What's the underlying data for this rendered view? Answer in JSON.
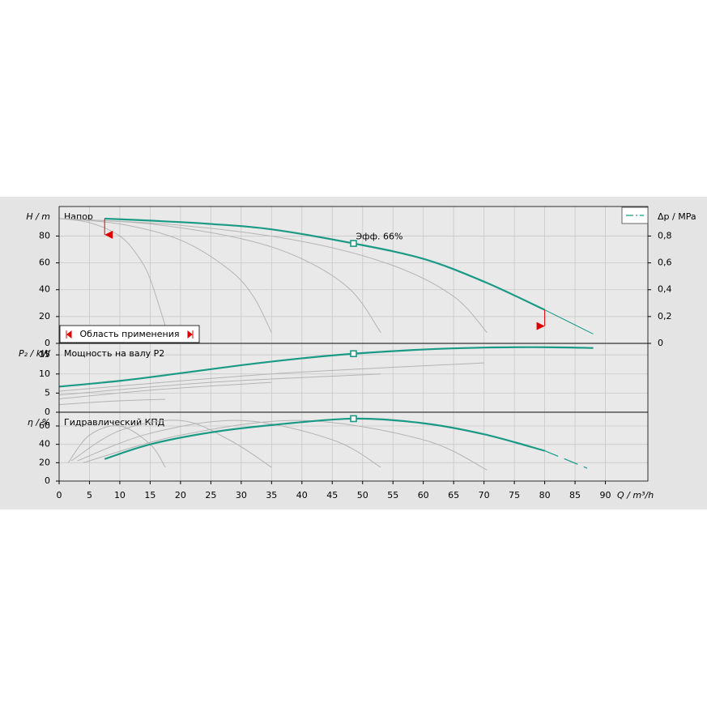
{
  "chart_data": [
    {
      "type": "line",
      "title": "Напор",
      "ylabel": "H / m",
      "y2label": "Δp / MPa",
      "xlim": [
        0,
        97
      ],
      "ylim": [
        0,
        102
      ],
      "yticks": [
        0,
        20,
        40,
        60,
        80
      ],
      "y2lim": [
        0,
        1.02
      ],
      "y2ticks": [
        0,
        {
          "value": 0.2,
          "label": "0,2"
        },
        {
          "value": 0.4,
          "label": "0,4"
        },
        {
          "value": 0.6,
          "label": "0,6"
        },
        {
          "value": 0.8,
          "label": "0,8"
        }
      ],
      "grid": true,
      "range": [
        7.5,
        80
      ],
      "range_label": "Область применения",
      "annotation": "Эфф.  66%",
      "duty_point": {
        "x": 48.5,
        "y": 74.5
      },
      "series": [
        {
          "color": "#b4b4b4",
          "width": 1,
          "x": [
            0,
            5,
            10,
            13,
            15,
            17.5
          ],
          "values": [
            93,
            90,
            80,
            65,
            48,
            13
          ]
        },
        {
          "color": "#b4b4b4",
          "width": 1,
          "x": [
            0,
            10,
            20,
            28,
            32,
            35
          ],
          "values": [
            93,
            89,
            77,
            55,
            35,
            8
          ]
        },
        {
          "color": "#b4b4b4",
          "width": 1,
          "x": [
            0,
            15,
            30,
            40,
            48,
            53
          ],
          "values": [
            93,
            89,
            78,
            63,
            40,
            8
          ]
        },
        {
          "color": "#b4b4b4",
          "width": 1,
          "x": [
            0,
            20,
            40,
            55,
            65,
            70.5
          ],
          "values": [
            93,
            88,
            76,
            58,
            35,
            8
          ]
        },
        {
          "color": "#1a9a84",
          "width": 2.2,
          "x": [
            7.5,
            15,
            25,
            35,
            48.5,
            60,
            70,
            80
          ],
          "values": [
            93,
            91.5,
            89,
            85,
            74.5,
            63,
            46,
            25
          ]
        },
        {
          "color": "#1a9a84",
          "width": 1,
          "x": [
            80,
            88
          ],
          "values": [
            25,
            7
          ]
        }
      ]
    },
    {
      "type": "line",
      "title": "Мощность на валу P2",
      "ylabel": "P₂ / kW",
      "xlim": [
        0,
        97
      ],
      "ylim": [
        0,
        18
      ],
      "yticks": [
        0,
        5,
        10,
        15
      ],
      "grid": true,
      "duty_point": {
        "x": 48.5,
        "y": 15.3
      },
      "series": [
        {
          "color": "#b4b4b4",
          "width": 1,
          "x": [
            0,
            9,
            17.5
          ],
          "values": [
            2,
            2.9,
            3.4
          ]
        },
        {
          "color": "#b4b4b4",
          "width": 1,
          "x": [
            0,
            17,
            35
          ],
          "values": [
            3.5,
            6,
            7.8
          ]
        },
        {
          "color": "#b4b4b4",
          "width": 1,
          "x": [
            0,
            25,
            53
          ],
          "values": [
            4.5,
            7.8,
            10
          ]
        },
        {
          "color": "#b4b4b4",
          "width": 1,
          "x": [
            0,
            35,
            70
          ],
          "values": [
            5.5,
            10,
            12.9
          ]
        },
        {
          "color": "#1a9a84",
          "width": 2.2,
          "x": [
            0,
            10,
            20,
            30,
            40,
            48.5,
            60,
            70,
            80,
            88
          ],
          "values": [
            6.7,
            8.2,
            10.2,
            12.3,
            14.1,
            15.3,
            16.4,
            16.9,
            17,
            16.8
          ]
        }
      ]
    },
    {
      "type": "line",
      "title": "Гидравлический КПД",
      "ylabel": "η / %",
      "xlabel": "Q / m³/h",
      "xlim": [
        0,
        97
      ],
      "ylim": [
        0,
        75
      ],
      "yticks": [
        0,
        20,
        40,
        60
      ],
      "xticks": [
        0,
        5,
        10,
        15,
        20,
        25,
        30,
        35,
        40,
        45,
        50,
        55,
        60,
        65,
        70,
        75,
        80,
        85,
        90
      ],
      "grid": true,
      "duty_point": {
        "x": 48.5,
        "y": 68
      },
      "series": [
        {
          "color": "#b4b4b4",
          "width": 1,
          "x": [
            1.5,
            5,
            10,
            15,
            17.5
          ],
          "values": [
            20,
            50,
            60,
            40,
            15
          ]
        },
        {
          "color": "#b4b4b4",
          "width": 1,
          "x": [
            2,
            10,
            20,
            28,
            35
          ],
          "values": [
            22,
            55,
            66,
            45,
            15
          ]
        },
        {
          "color": "#b4b4b4",
          "width": 1,
          "x": [
            3,
            15,
            30,
            45,
            53
          ],
          "values": [
            22,
            52,
            66,
            45,
            15
          ]
        },
        {
          "color": "#b4b4b4",
          "width": 1,
          "x": [
            4,
            20,
            40,
            60,
            70.5
          ],
          "values": [
            20,
            50,
            66,
            45,
            12
          ]
        },
        {
          "color": "#1a9a84",
          "width": 2.2,
          "x": [
            7.5,
            15,
            25,
            35,
            48.5,
            60,
            70,
            80
          ],
          "values": [
            24,
            40,
            53,
            61,
            68,
            63,
            51,
            33
          ]
        },
        {
          "color": "#1a9a84",
          "width": 1.2,
          "dash": true,
          "x": [
            80,
            87
          ],
          "values": [
            33,
            14
          ]
        }
      ]
    }
  ]
}
